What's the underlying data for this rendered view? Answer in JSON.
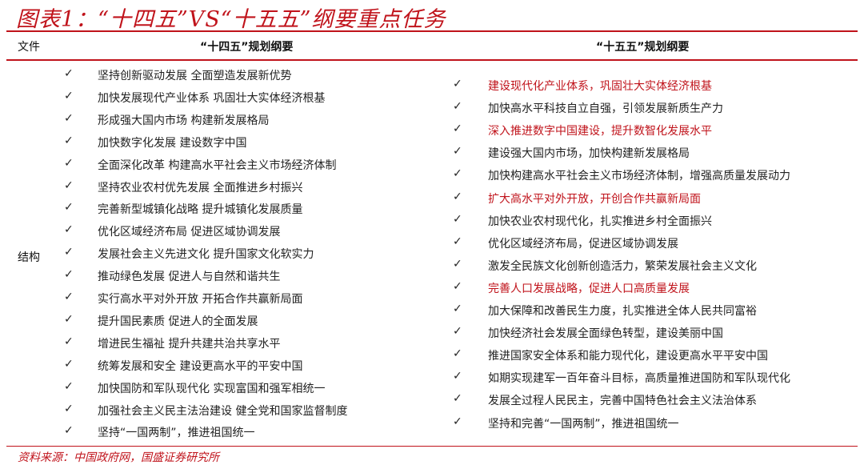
{
  "title": "图表1：“十四五”VS“十五五”纲要重点任务",
  "header": {
    "col_file": "文件",
    "col_14": "“十四五”规划纲要",
    "col_15": "“十五五”规划纲要"
  },
  "row_label": "结构",
  "check_icon": "✓",
  "colors": {
    "accent": "#c0131b"
  },
  "plan14": [
    "坚持创新驱动发展 全面塑造发展新优势",
    "加快发展现代产业体系 巩固壮大实体经济根基",
    "形成强大国内市场 构建新发展格局",
    "加快数字化发展 建设数字中国",
    "全面深化改革 构建高水平社会主义市场经济体制",
    "坚持农业农村优先发展 全面推进乡村振兴",
    "完善新型城镇化战略 提升城镇化发展质量",
    "优化区域经济布局 促进区域协调发展",
    "发展社会主义先进文化 提升国家文化软实力",
    "推动绿色发展 促进人与自然和谐共生",
    "实行高水平对外开放 开拓合作共赢新局面",
    "提升国民素质 促进人的全面发展",
    "增进民生福祉 提升共建共治共享水平",
    "统筹发展和安全 建设更高水平的平安中国",
    "加快国防和军队现代化 实现富国和强军相统一",
    "加强社会主义民主法治建设 健全党和国家监督制度",
    "坚持“一国两制”，推进祖国统一"
  ],
  "plan15": [
    {
      "text": "建设现代化产业体系，巩固壮大实体经济根基",
      "highlight": true
    },
    {
      "text": "加快高水平科技自立自强，引领发展新质生产力",
      "highlight": false
    },
    {
      "text": "深入推进数字中国建设，提升数智化发展水平",
      "highlight": true
    },
    {
      "text": "建设强大国内市场，加快构建新发展格局",
      "highlight": false
    },
    {
      "text": "加快构建高水平社会主义市场经济体制，增强高质量发展动力",
      "highlight": false
    },
    {
      "text": "扩大高水平对外开放，开创合作共赢新局面",
      "highlight": true
    },
    {
      "text": "加快农业农村现代化，扎实推进乡村全面振兴",
      "highlight": false
    },
    {
      "text": "优化区域经济布局，促进区域协调发展",
      "highlight": false
    },
    {
      "text": "激发全民族文化创新创造活力，繁荣发展社会主义文化",
      "highlight": false
    },
    {
      "text": "完善人口发展战略，促进人口高质量发展",
      "highlight": true
    },
    {
      "text": "加大保障和改善民生力度，扎实推进全体人民共同富裕",
      "highlight": false
    },
    {
      "text": "加快经济社会发展全面绿色转型，建设美丽中国",
      "highlight": false
    },
    {
      "text": "推进国家安全体系和能力现代化，建设更高水平平安中国",
      "highlight": false
    },
    {
      "text": "如期实现建军一百年奋斗目标，高质量推进国防和军队现代化",
      "highlight": false
    },
    {
      "text": "发展全过程人民民主，完善中国特色社会主义法治体系",
      "highlight": false
    },
    {
      "text": "坚持和完善“一国两制”，推进祖国统一",
      "highlight": false
    }
  ],
  "source": "资料来源：中国政府网，国盛证券研究所"
}
